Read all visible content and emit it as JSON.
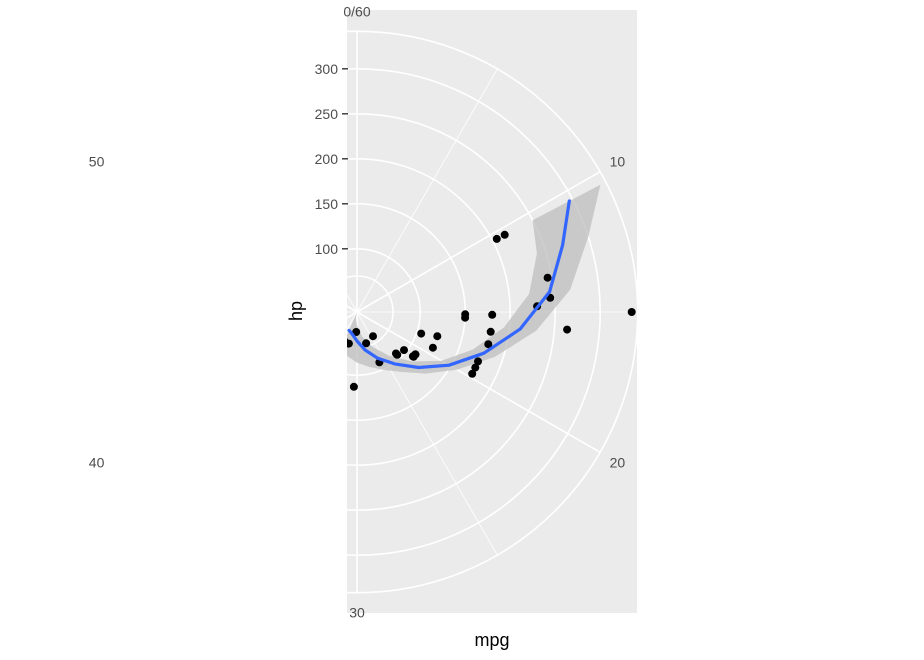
{
  "chart_data": {
    "type": "scatter",
    "coord": "polar",
    "xlabel": "mpg",
    "ylabel": "hp",
    "theta_variable": "mpg",
    "r_variable": "hp",
    "theta_ticks": [
      {
        "value": "0/60",
        "label": "0/60"
      },
      {
        "value": 10,
        "label": "10"
      },
      {
        "value": 20,
        "label": "20"
      },
      {
        "value": 30,
        "label": "30"
      },
      {
        "value": 40,
        "label": "40"
      },
      {
        "value": 50,
        "label": "50"
      }
    ],
    "theta_range": [
      0,
      60
    ],
    "r_ticks": [
      100,
      150,
      200,
      250,
      300
    ],
    "r_range": [
      52,
      335
    ],
    "grid": true,
    "panel_color": "#ebebeb",
    "points_color": "#000000",
    "smooth_color": "#3366ff",
    "ribbon_color": "#bdbdbd",
    "points": [
      {
        "mpg": 21.0,
        "hp": 110
      },
      {
        "mpg": 21.0,
        "hp": 110
      },
      {
        "mpg": 22.8,
        "hp": 93
      },
      {
        "mpg": 21.4,
        "hp": 110
      },
      {
        "mpg": 18.7,
        "hp": 175
      },
      {
        "mpg": 18.1,
        "hp": 105
      },
      {
        "mpg": 14.3,
        "hp": 245
      },
      {
        "mpg": 24.4,
        "hp": 62
      },
      {
        "mpg": 22.8,
        "hp": 95
      },
      {
        "mpg": 19.2,
        "hp": 123
      },
      {
        "mpg": 17.8,
        "hp": 123
      },
      {
        "mpg": 16.4,
        "hp": 180
      },
      {
        "mpg": 17.3,
        "hp": 180
      },
      {
        "mpg": 15.2,
        "hp": 180
      },
      {
        "mpg": 10.4,
        "hp": 205
      },
      {
        "mpg": 10.4,
        "hp": 215
      },
      {
        "mpg": 14.7,
        "hp": 230
      },
      {
        "mpg": 32.4,
        "hp": 66
      },
      {
        "mpg": 30.4,
        "hp": 52
      },
      {
        "mpg": 33.9,
        "hp": 65
      },
      {
        "mpg": 21.5,
        "hp": 97
      },
      {
        "mpg": 15.5,
        "hp": 150
      },
      {
        "mpg": 15.2,
        "hp": 150
      },
      {
        "mpg": 13.3,
        "hp": 245
      },
      {
        "mpg": 19.2,
        "hp": 175
      },
      {
        "mpg": 27.3,
        "hp": 66
      },
      {
        "mpg": 26.0,
        "hp": 91
      },
      {
        "mpg": 30.4,
        "hp": 113
      },
      {
        "mpg": 15.8,
        "hp": 264
      },
      {
        "mpg": 19.7,
        "hp": 175
      },
      {
        "mpg": 15.0,
        "hp": 335
      },
      {
        "mpg": 21.4,
        "hp": 109
      }
    ],
    "smooth": {
      "mpg": [
        10.4,
        12,
        14,
        16,
        18,
        20,
        22,
        24,
        26,
        28,
        30,
        32,
        33.9
      ],
      "hp": [
        296,
        270,
        245,
        212,
        178,
        148,
        122,
        101,
        86,
        73,
        62,
        55,
        52
      ],
      "lower": [
        250,
        240,
        222,
        194,
        165,
        138,
        112,
        90,
        72,
        58,
        45,
        36,
        30
      ],
      "upper": [
        335,
        300,
        268,
        230,
        191,
        158,
        132,
        112,
        100,
        92,
        86,
        80,
        76
      ]
    }
  }
}
